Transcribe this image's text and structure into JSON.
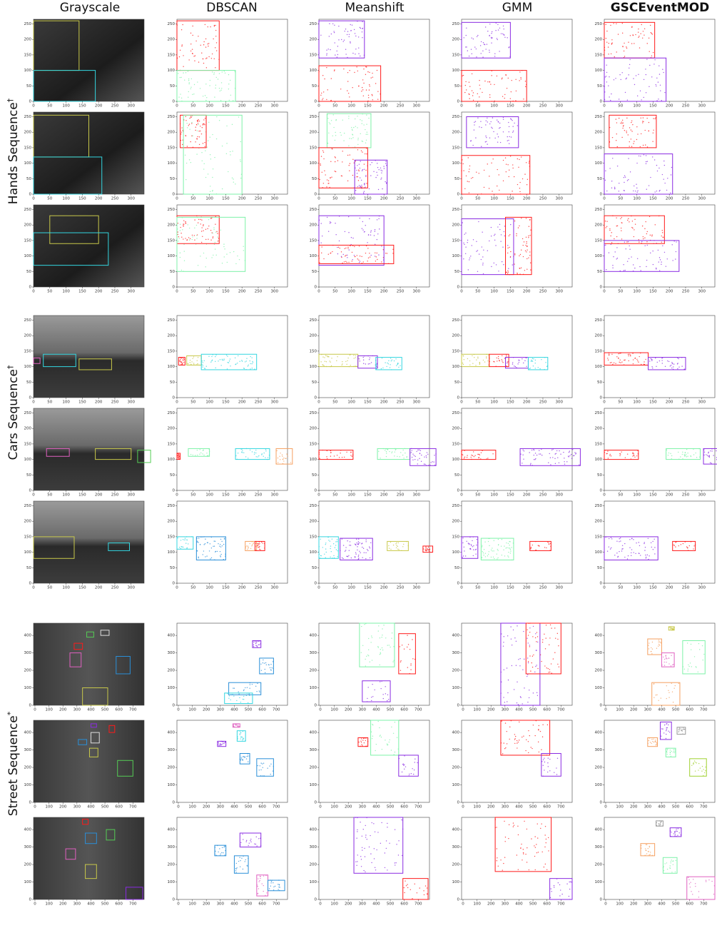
{
  "columns": [
    "Grayscale",
    "DBSCAN",
    "Meanshift",
    "GMM",
    "GSCEventMOD"
  ],
  "row_groups": [
    {
      "label": "Hands Sequence",
      "mark": "†",
      "xlim": [
        0,
        340
      ],
      "ylim": [
        0,
        265
      ],
      "xticks": [
        0,
        50,
        100,
        150,
        200,
        250,
        300
      ],
      "yticks": [
        0,
        50,
        100,
        150,
        200,
        250
      ]
    },
    {
      "label": "Cars Sequence",
      "mark": "†",
      "xlim": [
        0,
        340
      ],
      "ylim": [
        0,
        265
      ],
      "xticks": [
        0,
        50,
        100,
        150,
        200,
        250,
        300
      ],
      "yticks": [
        0,
        50,
        100,
        150,
        200,
        250
      ]
    },
    {
      "label": "Street Sequence",
      "mark": "*",
      "xlim": [
        -10,
        780
      ],
      "ylim": [
        0,
        470
      ],
      "xticks": [
        0,
        100,
        200,
        300,
        400,
        500,
        600,
        700
      ],
      "yticks": [
        0,
        100,
        200,
        300,
        400
      ]
    }
  ]
}
